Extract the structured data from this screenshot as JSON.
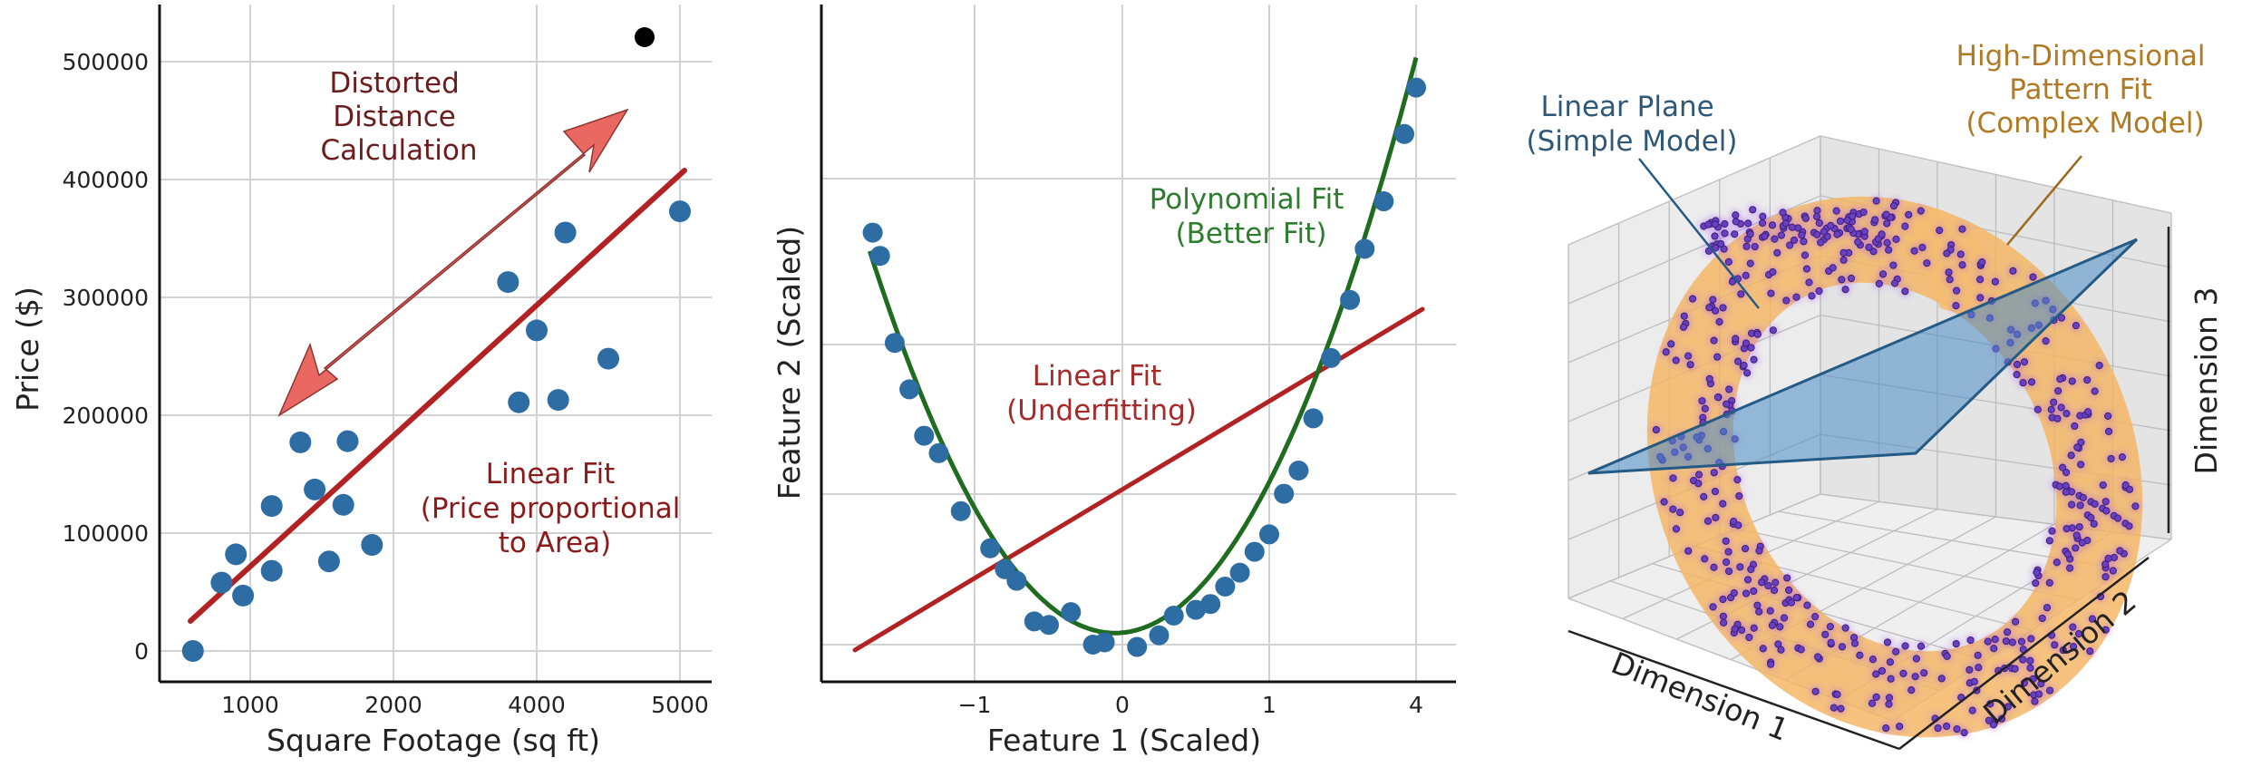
{
  "chart_data": [
    {
      "type": "scatter",
      "panel": "left",
      "title": "",
      "xlabel": "Square Footage (sq ft)",
      "ylabel": "Price ($)",
      "xticks": [
        "1000",
        "2000",
        "4000",
        "5000"
      ],
      "yticks": [
        "0",
        "100000",
        "200000",
        "300000",
        "400000",
        "500000"
      ],
      "ylim": [
        -75000,
        560000
      ],
      "grid": true,
      "points_color": "#2e6da4",
      "points": [
        {
          "x": 600,
          "y": 0
        },
        {
          "x": 800,
          "y": 58000
        },
        {
          "x": 900,
          "y": 82000
        },
        {
          "x": 950,
          "y": 47000
        },
        {
          "x": 1150,
          "y": 123000
        },
        {
          "x": 1150,
          "y": 68000
        },
        {
          "x": 1350,
          "y": 177000
        },
        {
          "x": 1450,
          "y": 137000
        },
        {
          "x": 1550,
          "y": 76000
        },
        {
          "x": 1650,
          "y": 124000
        },
        {
          "x": 1680,
          "y": 178000
        },
        {
          "x": 1850,
          "y": 90000
        },
        {
          "x": 3600,
          "y": 313000
        },
        {
          "x": 3750,
          "y": 211000
        },
        {
          "x": 4000,
          "y": 272000
        },
        {
          "x": 4150,
          "y": 213000
        },
        {
          "x": 4200,
          "y": 355000
        },
        {
          "x": 4500,
          "y": 248000
        },
        {
          "x": 5000,
          "y": 373000
        }
      ],
      "outlier": {
        "x": 4750,
        "y": 520000,
        "color": "#000000"
      },
      "fit_line": {
        "label": "Linear Fit",
        "from": [
          620,
          25000
        ],
        "to": [
          5000,
          408000
        ],
        "color": "#b22222"
      },
      "annotations": [
        {
          "text": [
            "Distorted",
            "Distance",
            "Calculation"
          ],
          "color": "#6b1d1d"
        },
        {
          "text": [
            "Linear Fit",
            "(Price proportional",
            "to Area)"
          ],
          "color": "#8b1a1a"
        }
      ],
      "arrow": {
        "type": "double-headed",
        "color": "#e8625a",
        "from": [
          1200,
          200000
        ],
        "to": [
          4600,
          500000
        ]
      }
    },
    {
      "type": "scatter",
      "panel": "middle",
      "title": "",
      "xlabel": "Feature 1 (Scaled)",
      "ylabel": "Feature 2 (Scaled)",
      "xticks": [
        "−1",
        "0",
        "1",
        "4"
      ],
      "yticks": [],
      "grid": true,
      "points_color": "#2e6da4",
      "points": [
        {
          "x": -1.7,
          "y": 3.55
        },
        {
          "x": -1.65,
          "y": 3.35
        },
        {
          "x": -1.55,
          "y": 2.6
        },
        {
          "x": -1.45,
          "y": 2.2
        },
        {
          "x": -1.35,
          "y": 1.8
        },
        {
          "x": -1.25,
          "y": 1.65
        },
        {
          "x": -1.1,
          "y": 1.15
        },
        {
          "x": -0.9,
          "y": 0.83
        },
        {
          "x": -0.8,
          "y": 0.65
        },
        {
          "x": -0.72,
          "y": 0.55
        },
        {
          "x": -0.6,
          "y": 0.2
        },
        {
          "x": -0.5,
          "y": 0.17
        },
        {
          "x": -0.35,
          "y": 0.28
        },
        {
          "x": -0.2,
          "y": 0.0
        },
        {
          "x": -0.12,
          "y": 0.02
        },
        {
          "x": 0.1,
          "y": -0.02
        },
        {
          "x": 0.25,
          "y": 0.08
        },
        {
          "x": 0.35,
          "y": 0.25
        },
        {
          "x": 0.5,
          "y": 0.3
        },
        {
          "x": 0.6,
          "y": 0.35
        },
        {
          "x": 0.7,
          "y": 0.5
        },
        {
          "x": 0.8,
          "y": 0.62
        },
        {
          "x": 0.9,
          "y": 0.8
        },
        {
          "x": 1.0,
          "y": 0.95
        },
        {
          "x": 1.1,
          "y": 1.3
        },
        {
          "x": 1.2,
          "y": 1.5
        },
        {
          "x": 1.3,
          "y": 1.95
        },
        {
          "x": 1.42,
          "y": 2.47
        },
        {
          "x": 1.55,
          "y": 2.97
        },
        {
          "x": 1.65,
          "y": 3.41
        },
        {
          "x": 1.78,
          "y": 3.82
        },
        {
          "x": 1.92,
          "y": 4.4
        },
        {
          "x": 2.0,
          "y": 4.8
        }
      ],
      "series": [
        {
          "name": "Polynomial Fit (Better Fit)",
          "type": "curve",
          "color": "#1f6b1f"
        },
        {
          "name": "Linear Fit (Underfitting)",
          "type": "line",
          "color": "#b22222"
        }
      ],
      "annotations": [
        {
          "text": [
            "Polynomial Fit",
            "(Better Fit)"
          ],
          "color": "#2e7d2e"
        },
        {
          "text": [
            "Linear Fit",
            "(Underfitting)"
          ],
          "color": "#a52a2a"
        }
      ]
    },
    {
      "type": "scatter3d",
      "panel": "right",
      "title": "",
      "axis_labels": [
        "Dimension 1",
        "Dimension 2",
        "Dimension 3"
      ],
      "series": [
        {
          "name": "Linear Plane (Simple Model)",
          "type": "plane",
          "color": "#4a8cc4"
        },
        {
          "name": "High-Dimensional Pattern Fit (Complex Model)",
          "type": "surface",
          "color": "#f0a848"
        },
        {
          "name": "data points",
          "type": "scatter",
          "color": "#5b2fb0"
        }
      ],
      "annotations": [
        {
          "text": [
            "Linear Plane",
            "(Simple Model)"
          ],
          "color": "#2f5878"
        },
        {
          "text": [
            "High-Dimensional",
            "Pattern Fit",
            "(Complex Model)"
          ],
          "color": "#b07a24"
        }
      ]
    }
  ]
}
